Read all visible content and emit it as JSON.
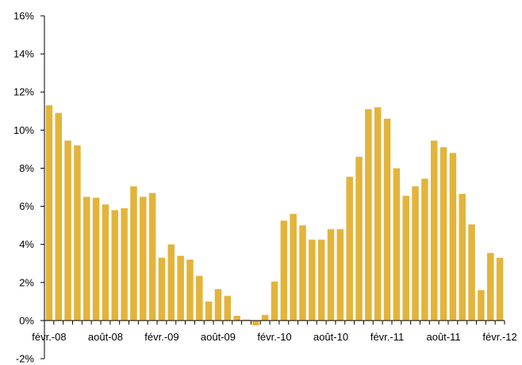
{
  "chart_data": {
    "type": "bar",
    "title": "",
    "xlabel": "",
    "ylabel": "",
    "ylim": [
      -2,
      16
    ],
    "y_ticks": [
      -2,
      0,
      2,
      4,
      6,
      8,
      10,
      12,
      14,
      16
    ],
    "y_tick_labels": [
      "-2%",
      "0%",
      "2%",
      "4%",
      "6%",
      "8%",
      "10%",
      "12%",
      "14%",
      "16%"
    ],
    "x_tick_labels": [
      {
        "index": 0,
        "label": "févr.-08"
      },
      {
        "index": 6,
        "label": "août-08"
      },
      {
        "index": 12,
        "label": "févr.-09"
      },
      {
        "index": 18,
        "label": "août-09"
      },
      {
        "index": 24,
        "label": "févr.-10"
      },
      {
        "index": 30,
        "label": "août-10"
      },
      {
        "index": 36,
        "label": "févr.-11"
      },
      {
        "index": 42,
        "label": "août-11"
      },
      {
        "index": 48,
        "label": "févr.-12"
      }
    ],
    "bar_color": "#e3b43c",
    "grid": false,
    "legend": "none",
    "values": [
      11.3,
      10.9,
      9.45,
      9.2,
      6.5,
      6.45,
      6.1,
      5.8,
      5.9,
      7.05,
      6.5,
      6.7,
      3.3,
      4.0,
      3.4,
      3.2,
      2.35,
      1.0,
      1.65,
      1.3,
      0.25,
      0.05,
      -0.25,
      0.3,
      2.05,
      5.25,
      5.6,
      5.0,
      4.25,
      4.25,
      4.8,
      4.8,
      7.55,
      8.6,
      11.1,
      11.2,
      10.6,
      8.0,
      6.55,
      7.05,
      7.45,
      9.45,
      9.1,
      8.8,
      6.65,
      5.05,
      1.6,
      3.55,
      3.3
    ]
  }
}
